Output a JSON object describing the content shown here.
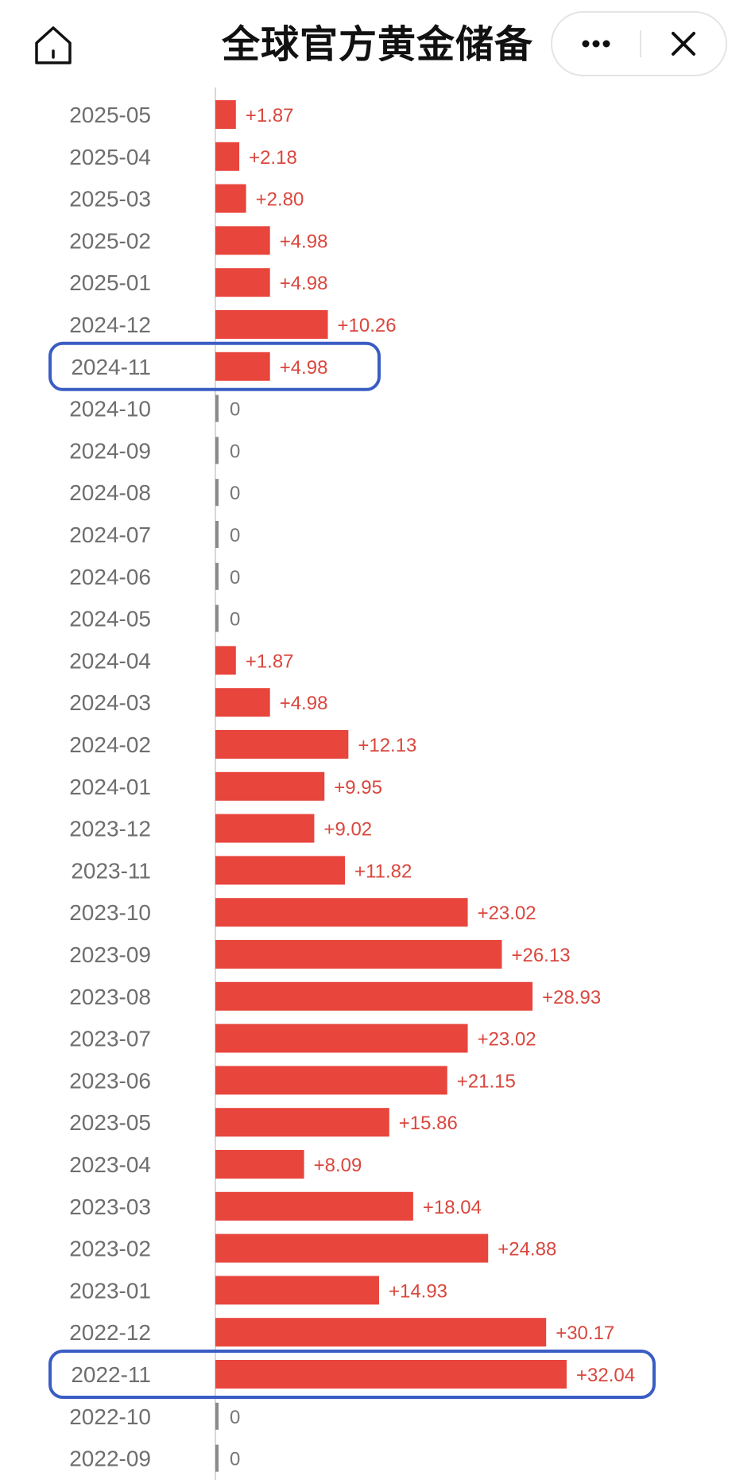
{
  "header": {
    "title": "全球官方黄金储备",
    "home_icon": "home-icon",
    "more_icon": "more-dots-icon",
    "close_icon": "close-icon"
  },
  "colors": {
    "bar": "#e8453c",
    "value_text": "#d9473e",
    "zero_text": "#777777",
    "zero_tick": "#8a8a8a",
    "highlight": "#3a5dc4",
    "axis": "#cccccc"
  },
  "chart_data": {
    "type": "bar",
    "orientation": "horizontal",
    "categories": [
      "2025-05",
      "2025-04",
      "2025-03",
      "2025-02",
      "2025-01",
      "2024-12",
      "2024-11",
      "2024-10",
      "2024-09",
      "2024-08",
      "2024-07",
      "2024-06",
      "2024-05",
      "2024-04",
      "2024-03",
      "2024-02",
      "2024-01",
      "2023-12",
      "2023-11",
      "2023-10",
      "2023-09",
      "2023-08",
      "2023-07",
      "2023-06",
      "2023-05",
      "2023-04",
      "2023-03",
      "2023-02",
      "2023-01",
      "2022-12",
      "2022-11",
      "2022-10",
      "2022-09"
    ],
    "values": [
      1.87,
      2.18,
      2.8,
      4.98,
      4.98,
      10.26,
      4.98,
      0,
      0,
      0,
      0,
      0,
      0,
      1.87,
      4.98,
      12.13,
      9.95,
      9.02,
      11.82,
      23.02,
      26.13,
      28.93,
      23.02,
      21.15,
      15.86,
      8.09,
      18.04,
      24.88,
      14.93,
      30.17,
      32.04,
      0,
      0
    ],
    "value_labels": [
      "+1.87",
      "+2.18",
      "+2.80",
      "+4.98",
      "+4.98",
      "+10.26",
      "+4.98",
      "0",
      "0",
      "0",
      "0",
      "0",
      "0",
      "+1.87",
      "+4.98",
      "+12.13",
      "+9.95",
      "+9.02",
      "+11.82",
      "+23.02",
      "+26.13",
      "+28.93",
      "+23.02",
      "+21.15",
      "+15.86",
      "+8.09",
      "+18.04",
      "+24.88",
      "+14.93",
      "+30.17",
      "+32.04",
      "0",
      "0"
    ],
    "highlighted": [
      "2024-11",
      "2022-11"
    ],
    "title": "",
    "xlabel": "",
    "ylabel": "",
    "xlim": [
      0,
      32.04
    ],
    "grid": false,
    "legend": "none"
  }
}
